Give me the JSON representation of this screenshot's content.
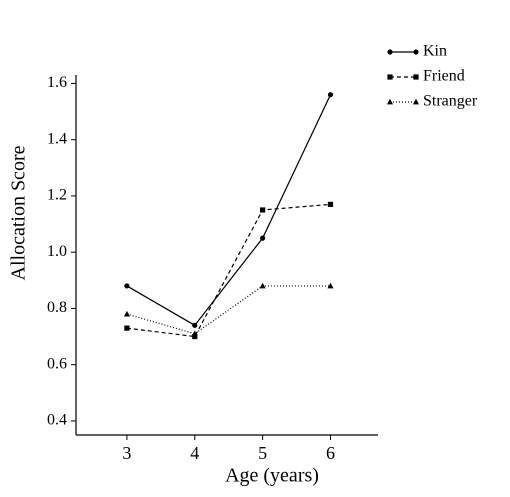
{
  "chart_data": {
    "type": "line",
    "x_label": "Age (years)",
    "y_label": "Allocation Score",
    "x": [
      3,
      4,
      5,
      6
    ],
    "xlim": [
      2.25,
      6.7
    ],
    "xticks": [
      3,
      4,
      5,
      6
    ],
    "ylim": [
      0.35,
      1.63
    ],
    "yticks": [
      0.4,
      0.6,
      0.8,
      {
        "value": 1,
        "label": "1.0"
      },
      1.2,
      1.4,
      1.6
    ],
    "legend": "top-right",
    "series": [
      {
        "name": "Kin",
        "color": "#000000",
        "marker": "circle",
        "dash": "solid",
        "values": [
          0.88,
          0.74,
          1.05,
          1.56
        ]
      },
      {
        "name": "Friend",
        "color": "#000000",
        "marker": "square",
        "dash": "dashed",
        "values": [
          0.73,
          0.7,
          1.15,
          1.17
        ]
      },
      {
        "name": "Stranger",
        "color": "#000000",
        "marker": "triangle",
        "dash": "dotted",
        "values": [
          0.78,
          0.71,
          0.88,
          0.88
        ]
      }
    ]
  }
}
